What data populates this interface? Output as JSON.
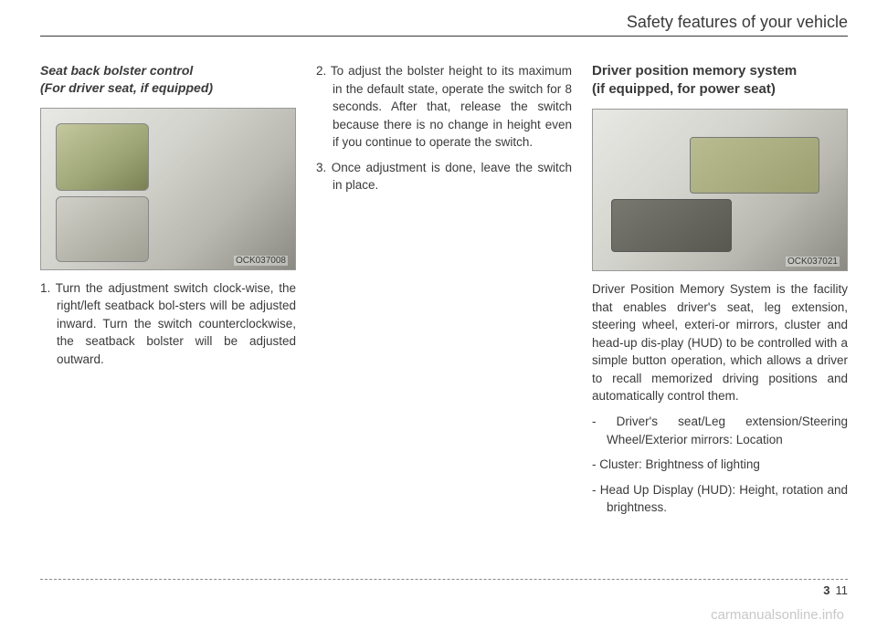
{
  "header": {
    "title": "Safety features of your vehicle"
  },
  "col1": {
    "subheading_line1": "Seat back bolster control",
    "subheading_line2": "(For driver seat, if equipped)",
    "figure_caption": "OCK037008",
    "item1": "1. Turn the adjustment switch clock-wise, the right/left seatback bol-sters will be adjusted inward. Turn the switch counterclockwise, the seatback bolster will be adjusted outward."
  },
  "col2": {
    "item2": "2. To adjust the bolster height to its maximum in the default state, operate the switch for 8 seconds. After that, release the switch because there is no change in height even if you continue to operate the switch.",
    "item3": "3. Once adjustment is done, leave the switch in place."
  },
  "col3": {
    "heading_line1": "Driver position memory system",
    "heading_line2": "(if equipped, for power seat)",
    "figure_caption": "OCK037021",
    "para1": "Driver Position Memory System is the facility that enables driver's seat, leg extension, steering wheel, exteri-or mirrors, cluster and head-up dis-play (HUD) to be controlled with a simple button operation, which allows a driver to recall memorized driving positions and automatically control them.",
    "dash1": "-  Driver's seat/Leg extension/Steering Wheel/Exterior mirrors: Location",
    "dash2": "-  Cluster: Brightness of lighting",
    "dash3": "-  Head Up Display (HUD): Height, rotation and brightness."
  },
  "footer": {
    "chapter": "3",
    "page": "11"
  },
  "watermark": "carmanualsonline.info"
}
